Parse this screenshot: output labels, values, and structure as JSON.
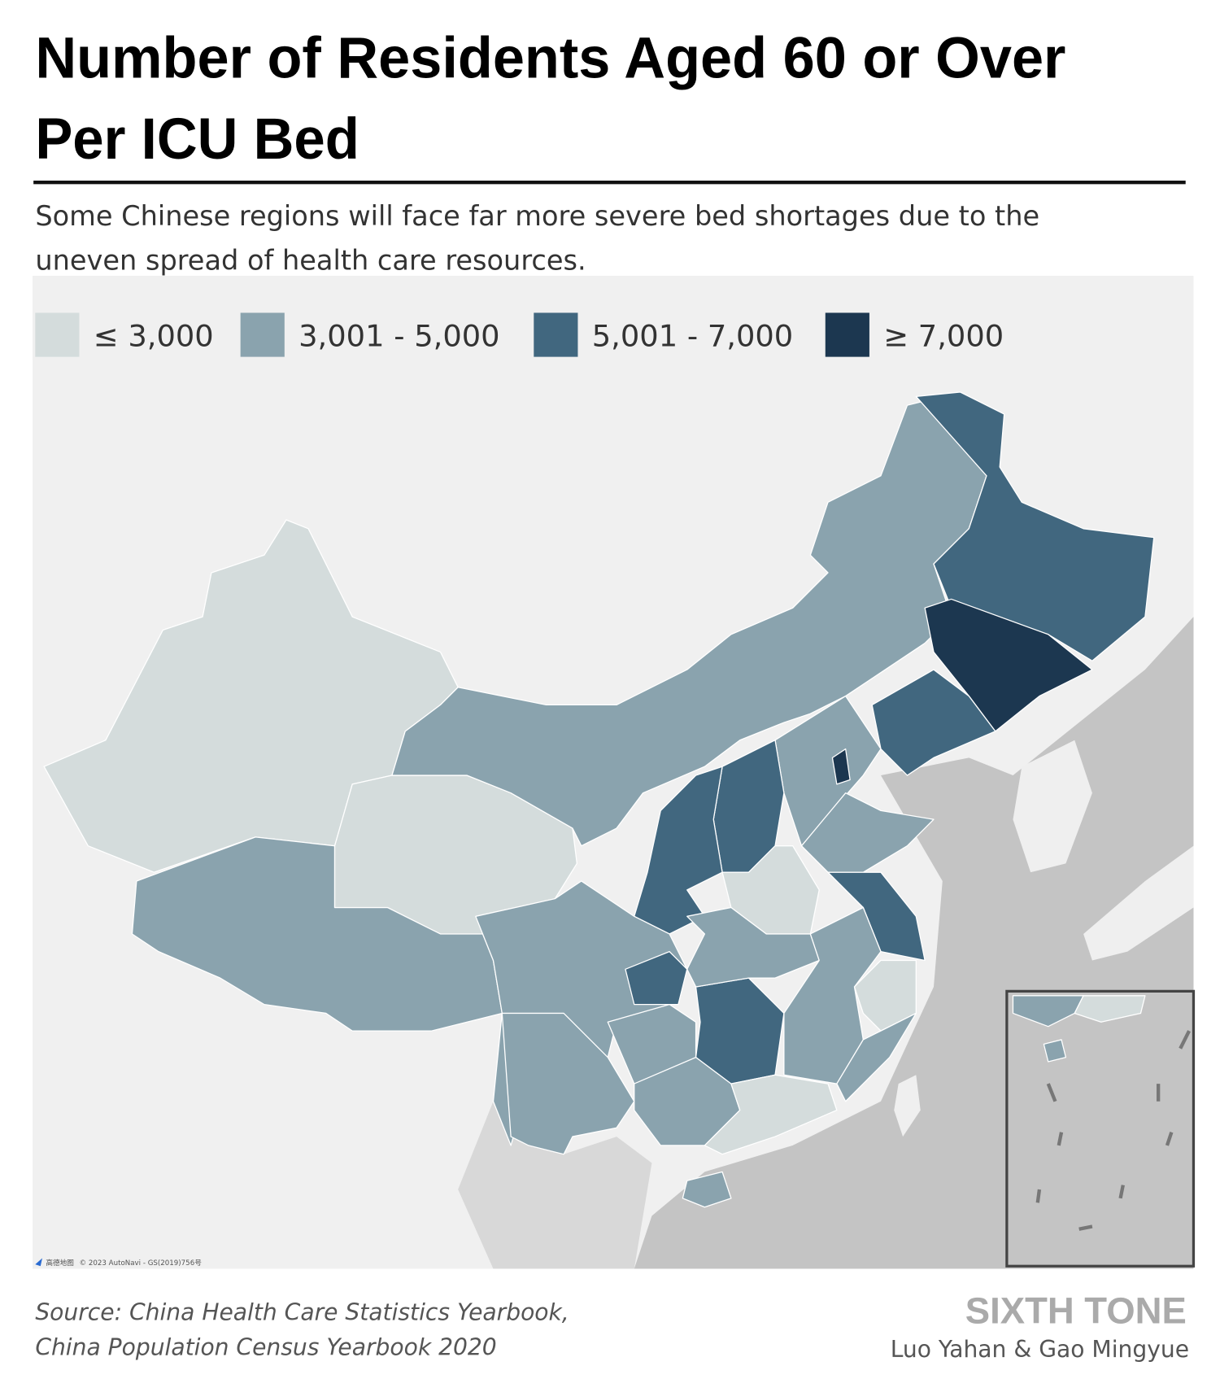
{
  "header": {
    "title_lines": [
      "Number of Residents Aged 60 or Over",
      "Per ICU Bed"
    ],
    "subtitle_lines": [
      "Some Chinese regions will face far more severe bed shortages due to the",
      "uneven spread of health care resources."
    ]
  },
  "legend": {
    "items": [
      {
        "label": "≤ 3,000",
        "color": "#d4dcdc"
      },
      {
        "label": "3,001 - 5,000",
        "color": "#8aa3ae"
      },
      {
        "label": "5,001 - 7,000",
        "color": "#41677f"
      },
      {
        "label": "≥ 7,000",
        "color": "#1c3750"
      }
    ]
  },
  "map": {
    "provider": "高德地图",
    "attribution": "© 2023 AutoNavi - GS(2019)756号"
  },
  "footer": {
    "source_lines": [
      "Source: China Health Care Statistics Yearbook,",
      "China Population Census Yearbook 2020"
    ],
    "brand": "SIXTH TONE",
    "authors": "Luo Yahan & Gao Mingyue"
  }
}
